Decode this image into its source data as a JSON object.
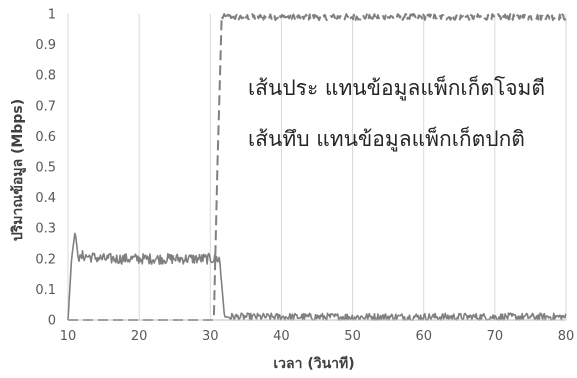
{
  "chart_data": {
    "type": "line",
    "xlabel": "เวลา (วินาที)",
    "ylabel": "ปริมาณข้อมูล (Mbps)",
    "xlim": [
      10,
      80
    ],
    "ylim": [
      0,
      1
    ],
    "x_ticks": [
      10,
      20,
      30,
      40,
      50,
      60,
      70,
      80
    ],
    "y_ticks": [
      0,
      0.1,
      0.2,
      0.3,
      0.4,
      0.5,
      0.6,
      0.7,
      0.8,
      0.9,
      1
    ],
    "x_tick_labels": [
      "10",
      "20",
      "30",
      "40",
      "50",
      "60",
      "70",
      "80"
    ],
    "y_tick_labels": [
      "0",
      "0.1",
      "0.2",
      "0.3",
      "0.4",
      "0.5",
      "0.6",
      "0.7",
      "0.8",
      "0.9",
      "1"
    ],
    "grid": "vertical",
    "annotations": [
      "เส้นประ แทนข้อมูลแพ็กเก็ตโจมตี",
      "เส้นทึบ แทนข้อมูลแพ็กเก็ตปกติ"
    ],
    "series": [
      {
        "style": "dashed",
        "color": "#808080",
        "points": [
          [
            10,
            0
          ],
          [
            30.5,
            0
          ],
          [
            31,
            0.5
          ],
          [
            31.6,
            0.99
          ],
          [
            33,
            0.99
          ],
          [
            40,
            0.99
          ],
          [
            50,
            0.99
          ],
          [
            60,
            0.99
          ],
          [
            70,
            0.99
          ],
          [
            80,
            0.99
          ]
        ]
      },
      {
        "style": "solid",
        "color": "#808080",
        "points": [
          [
            10,
            0
          ],
          [
            10.5,
            0.2
          ],
          [
            11,
            0.29
          ],
          [
            11.5,
            0.19
          ],
          [
            12,
            0.21
          ],
          [
            15,
            0.2
          ],
          [
            20,
            0.2
          ],
          [
            25,
            0.2
          ],
          [
            30,
            0.2
          ],
          [
            31.3,
            0.2
          ],
          [
            32,
            0.01
          ],
          [
            40,
            0.01
          ],
          [
            50,
            0.01
          ],
          [
            60,
            0.01
          ],
          [
            70,
            0.01
          ],
          [
            80,
            0.01
          ]
        ]
      }
    ]
  }
}
